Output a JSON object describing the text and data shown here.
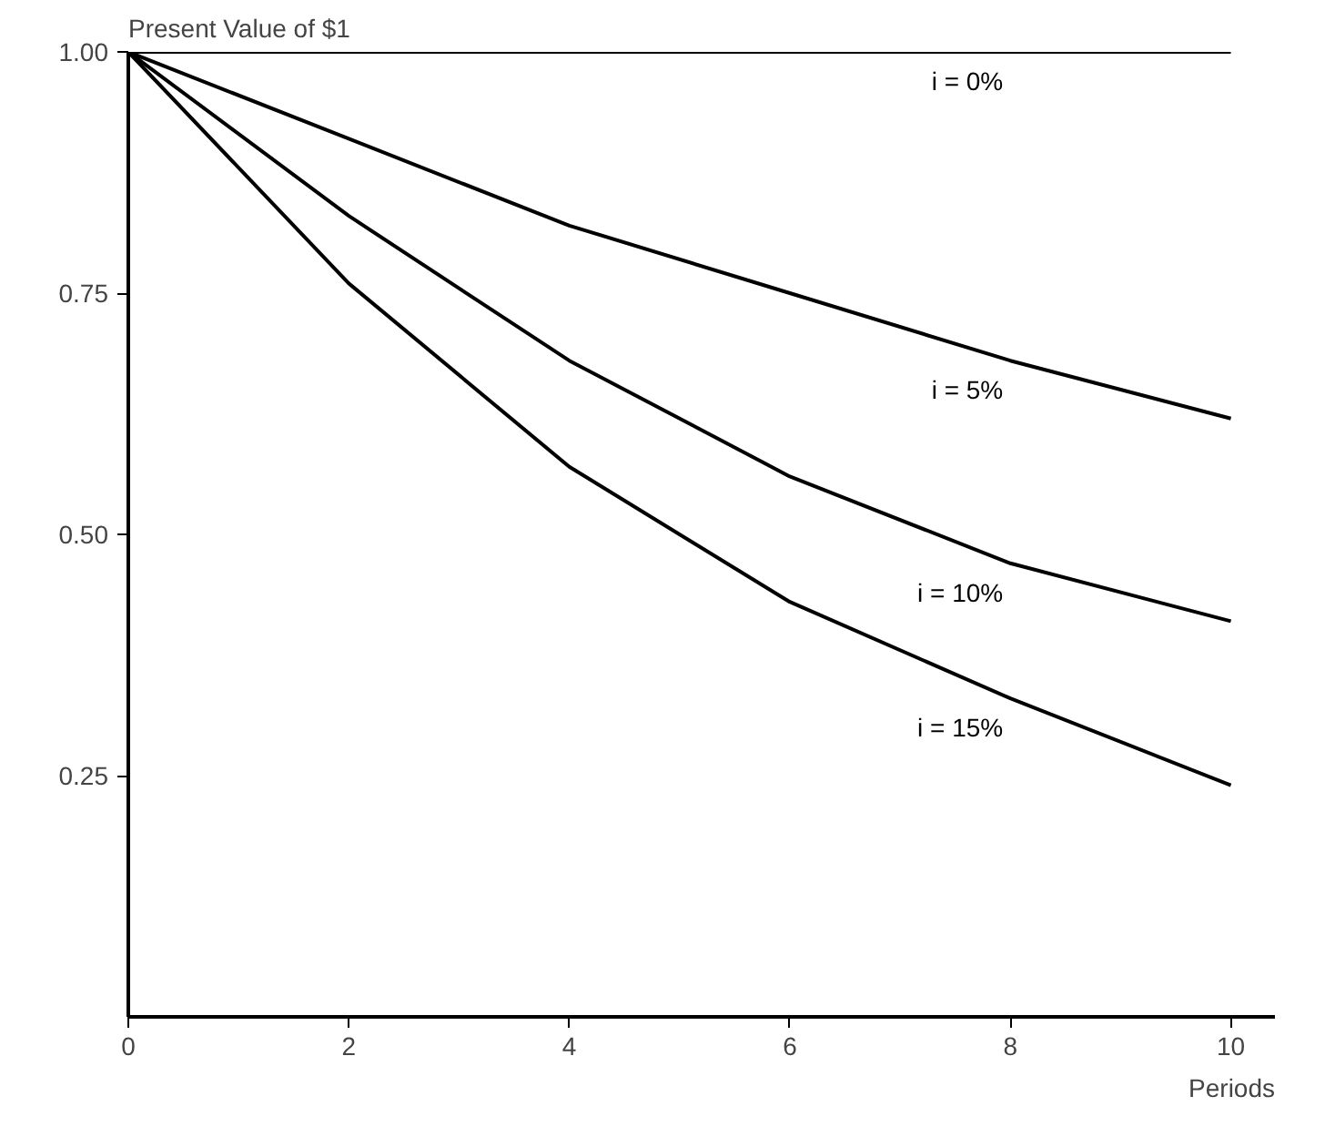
{
  "chart_data": {
    "type": "line",
    "ylabel": "Present Value of $1",
    "xlabel": "Periods",
    "x": [
      0,
      2,
      4,
      6,
      8,
      10
    ],
    "series": [
      {
        "name": "i = 0%",
        "color": "#000000",
        "values": [
          1,
          1,
          1,
          1,
          1,
          1
        ]
      },
      {
        "name": "i = 5%",
        "color": "#000000",
        "values": [
          1,
          0.91,
          0.82,
          0.75,
          0.68,
          0.62
        ]
      },
      {
        "name": "i = 10%",
        "color": "#000000",
        "values": [
          1,
          0.83,
          0.68,
          0.56,
          0.47,
          0.41
        ]
      },
      {
        "name": "i = 15%",
        "color": "#000000",
        "values": [
          1,
          0.76,
          0.57,
          0.43,
          0.33,
          0.24
        ]
      }
    ],
    "xlim": [
      0,
      10.4
    ],
    "ylim": [
      0,
      1.0
    ],
    "xticks": [
      0,
      2,
      4,
      6,
      8,
      10
    ],
    "yticks": [
      {
        "value": 0.25,
        "label": "0.25"
      },
      {
        "value": 0.5,
        "label": "0.50"
      },
      {
        "value": 0.75,
        "label": "0.75"
      },
      {
        "value": 1.0,
        "label": "1.00"
      }
    ],
    "grid": false,
    "marker": "none",
    "line_style": "solid"
  }
}
